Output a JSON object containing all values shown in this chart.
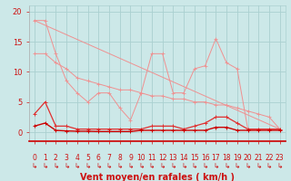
{
  "background_color": "#cce8e8",
  "grid_color": "#aad0d0",
  "xlabel": "Vent moyen/en rafales ( km/h )",
  "xlabel_color": "#cc1111",
  "xlabel_fontsize": 7,
  "ylabel_ticks": [
    0,
    5,
    10,
    15,
    20
  ],
  "xlim": [
    -0.5,
    23.5
  ],
  "ylim": [
    -1.5,
    21
  ],
  "x_ticks": [
    0,
    1,
    2,
    3,
    4,
    5,
    6,
    7,
    8,
    9,
    10,
    11,
    12,
    13,
    14,
    15,
    16,
    17,
    18,
    19,
    20,
    21,
    22,
    23
  ],
  "line1_x": [
    0,
    1,
    2,
    3,
    4,
    5,
    6,
    7,
    8,
    9,
    10,
    11,
    12,
    13,
    14,
    15,
    16,
    17,
    18,
    19,
    20,
    21,
    22,
    23
  ],
  "line1_y": [
    18.5,
    18.5,
    13.0,
    8.5,
    6.5,
    5.0,
    6.5,
    6.5,
    4.0,
    2.0,
    6.5,
    13.0,
    13.0,
    6.5,
    6.5,
    10.5,
    11.0,
    15.5,
    11.5,
    10.5,
    0.5,
    0.5,
    0.5,
    0.5
  ],
  "line2_x": [
    0,
    1,
    2,
    3,
    4,
    5,
    6,
    7,
    8,
    9,
    10,
    11,
    12,
    13,
    14,
    15,
    16,
    17,
    18,
    19,
    20,
    21,
    22,
    23
  ],
  "line2_y": [
    13.0,
    13.0,
    11.5,
    10.5,
    9.0,
    8.5,
    8.0,
    7.5,
    7.0,
    7.0,
    6.5,
    6.0,
    6.0,
    5.5,
    5.5,
    5.0,
    5.0,
    4.5,
    4.5,
    4.0,
    3.5,
    3.0,
    2.5,
    0.5
  ],
  "line3_x": [
    0,
    1,
    2,
    3,
    4,
    5,
    6,
    7,
    8,
    9,
    10,
    11,
    12,
    13,
    14,
    15,
    16,
    17,
    18,
    19,
    20,
    21,
    22,
    23
  ],
  "line3_y": [
    3.0,
    5.0,
    1.0,
    1.0,
    0.5,
    0.5,
    0.5,
    0.5,
    0.5,
    0.5,
    0.5,
    1.0,
    1.0,
    1.0,
    0.5,
    1.0,
    1.5,
    2.5,
    2.5,
    1.5,
    0.5,
    0.5,
    0.5,
    0.5
  ],
  "line4_x": [
    0,
    1,
    2,
    3,
    4,
    5,
    6,
    7,
    8,
    9,
    10,
    11,
    12,
    13,
    14,
    15,
    16,
    17,
    18,
    19,
    20,
    21,
    22,
    23
  ],
  "line4_y": [
    1.0,
    1.5,
    0.3,
    0.2,
    0.15,
    0.15,
    0.1,
    0.1,
    0.1,
    0.1,
    0.3,
    0.3,
    0.3,
    0.3,
    0.3,
    0.3,
    0.3,
    0.8,
    0.8,
    0.3,
    0.3,
    0.3,
    0.3,
    0.3
  ],
  "line5_x": [
    0,
    23
  ],
  "line5_y": [
    18.5,
    0.5
  ],
  "line_color_light": "#f09090",
  "line_color_dark": "#e03030",
  "line_color_darker": "#cc0000",
  "tick_color": "#cc1111",
  "tick_fontsize": 5.5,
  "ytick_fontsize": 6
}
